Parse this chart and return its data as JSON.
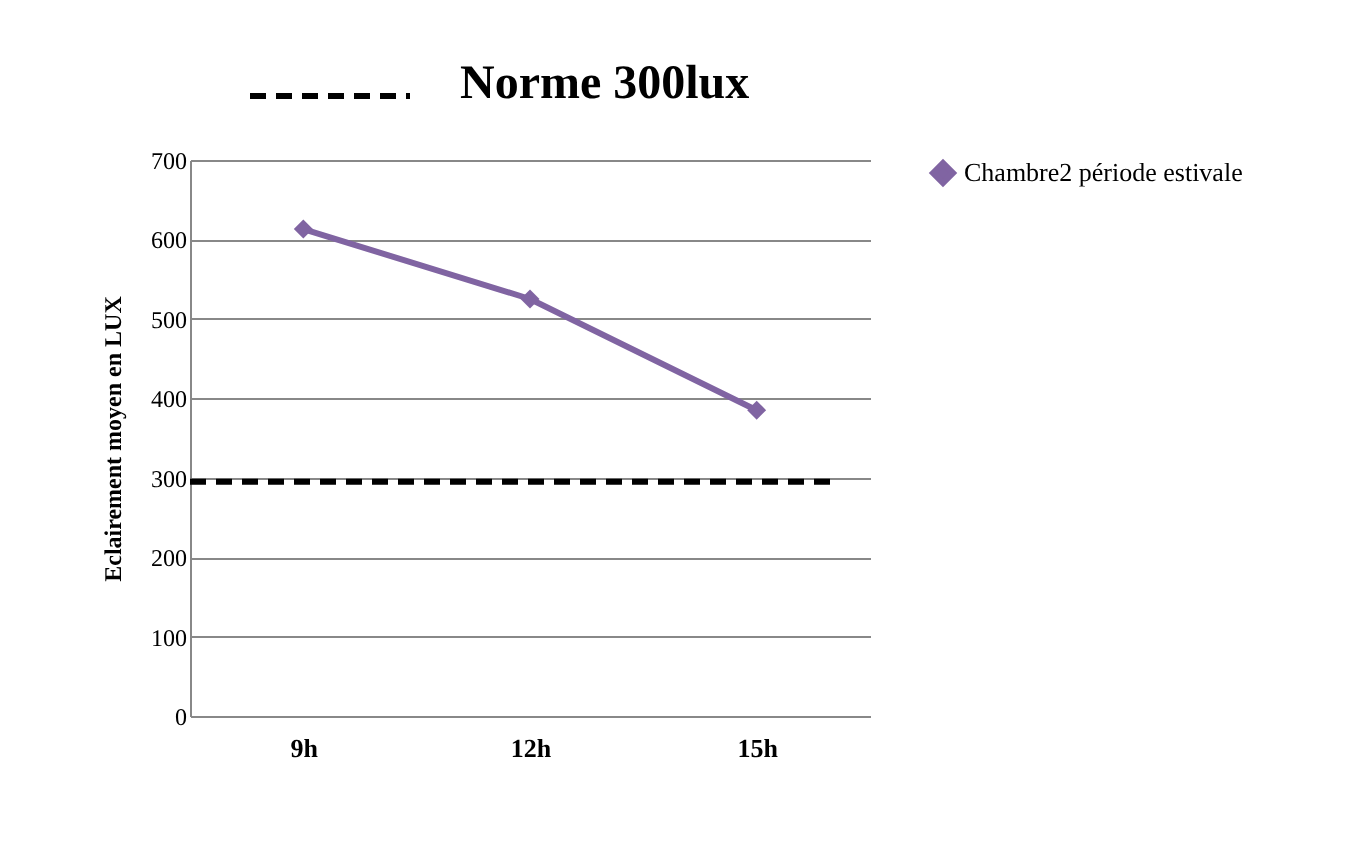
{
  "chart_data": {
    "type": "line",
    "categories": [
      "9h",
      "12h",
      "15h"
    ],
    "series": [
      {
        "name": "Chambre2 période estivale",
        "color": "#8064a2",
        "values": [
          613,
          525,
          385
        ]
      }
    ],
    "ylabel": "Eclairement moyen en LUX",
    "ylim": [
      0,
      700
    ],
    "yticks": [
      0,
      100,
      200,
      300,
      400,
      500,
      600,
      700
    ],
    "ref_lines": [
      {
        "axis": "y",
        "value": 295,
        "label": "Norme 300lux",
        "color": "#000000",
        "line_style": "dashed"
      }
    ],
    "grid": "y",
    "legend": "right",
    "marker": "diamond",
    "line_style": "solid"
  }
}
